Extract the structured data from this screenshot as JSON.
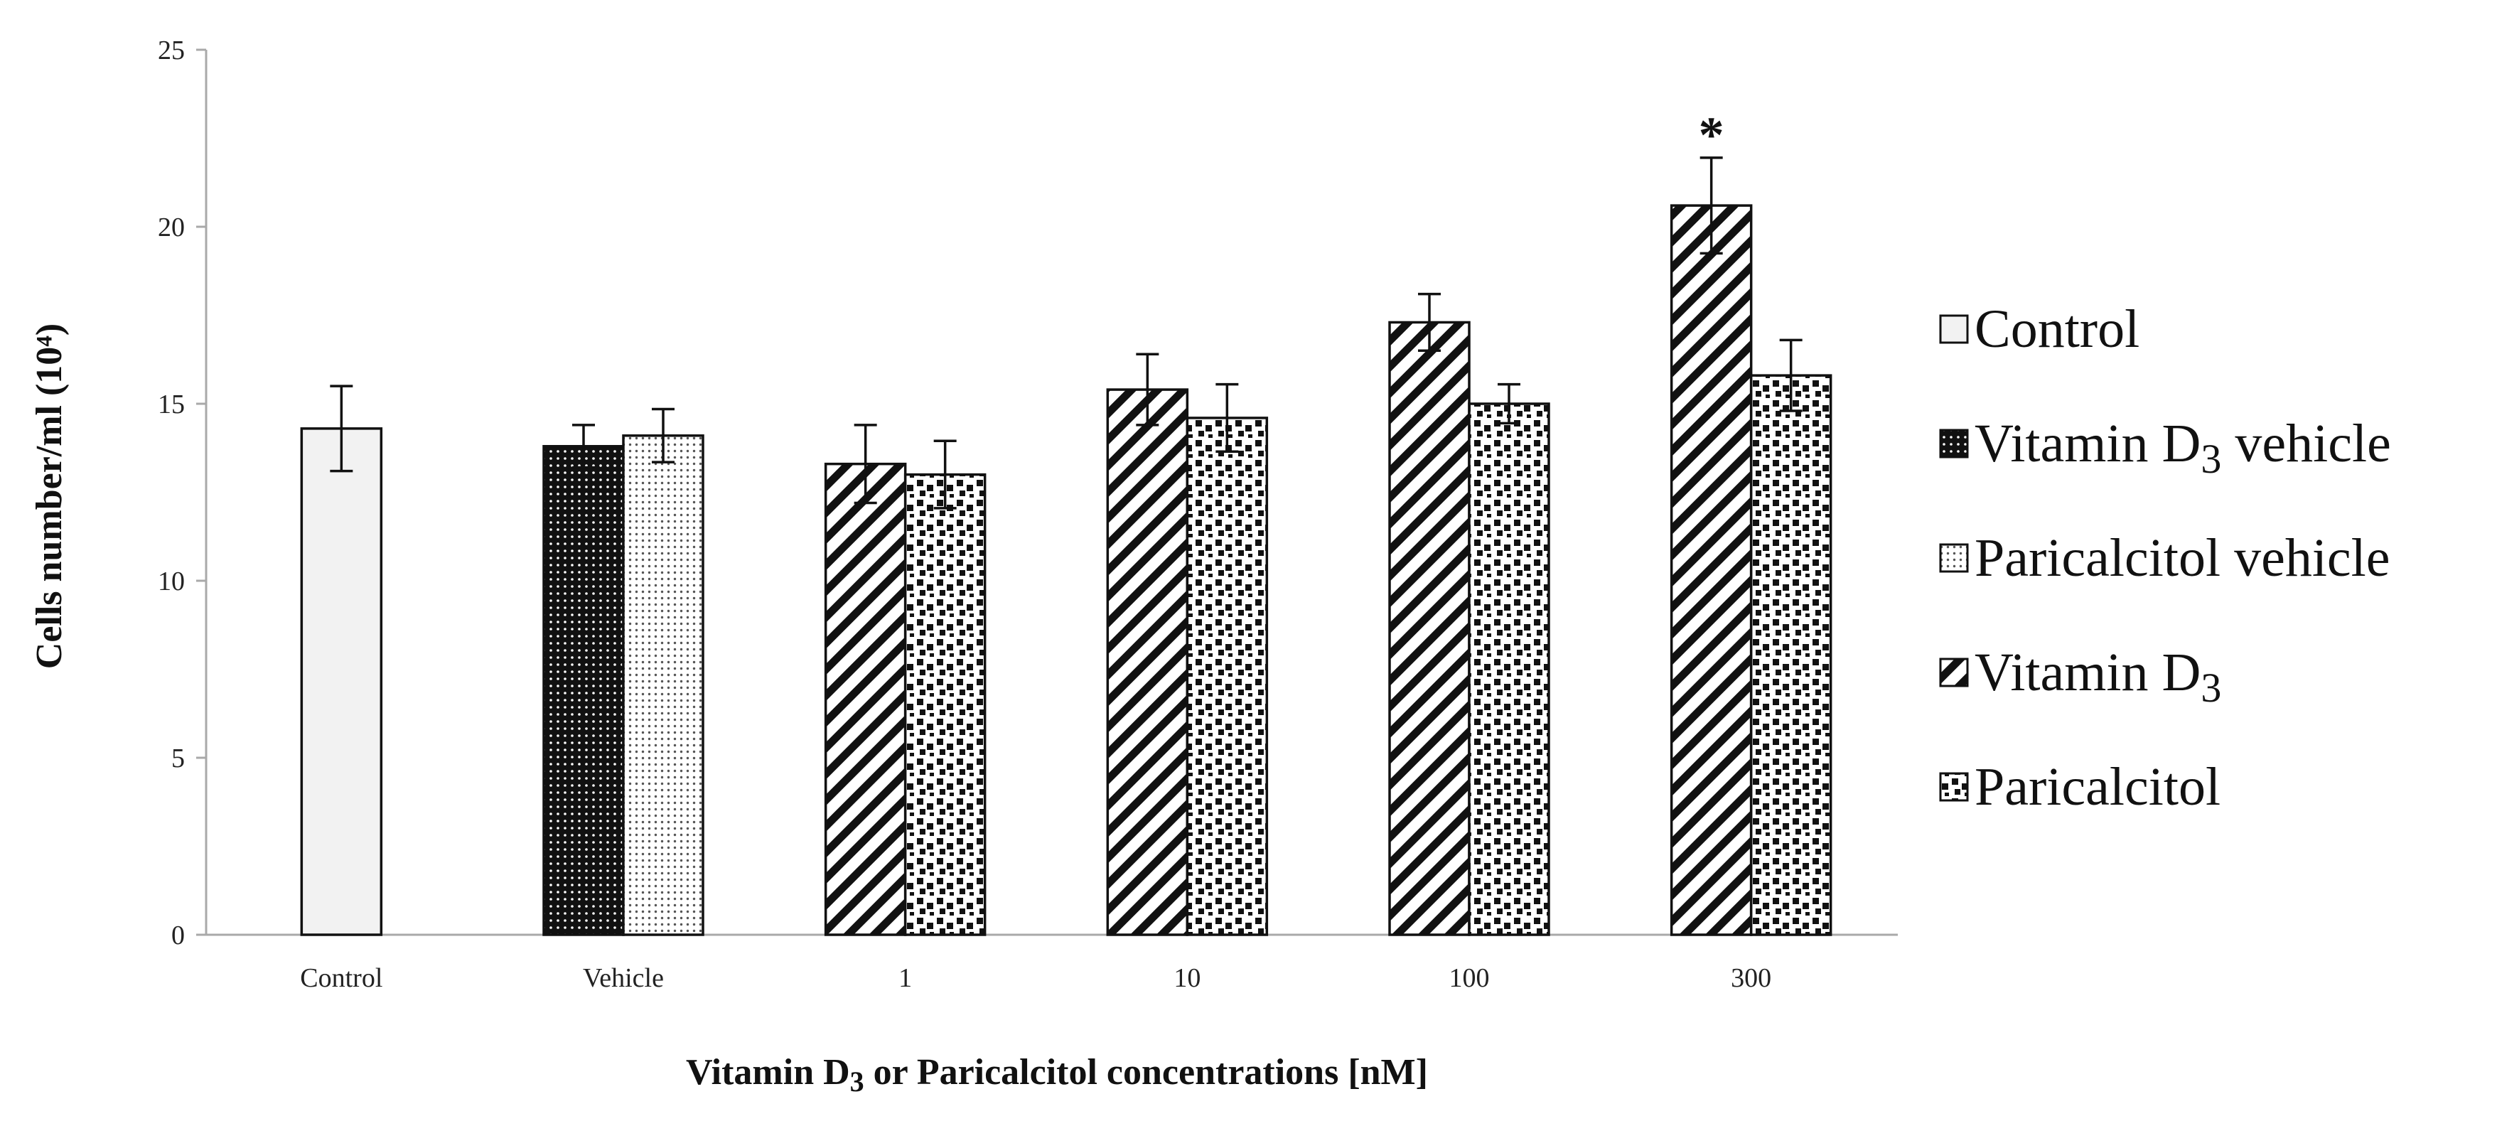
{
  "chart_data": {
    "type": "bar",
    "title": "",
    "xlabel": "Vitamin D3 or Paricalcitol concentrations [nM]",
    "xlabel_parts": {
      "prefix": "Vitamin D",
      "subscript": "3",
      "suffix": " or Paricalcitol concentrations [nM]"
    },
    "ylabel": "Cells number/ml (10⁴)",
    "ylim": [
      0,
      25
    ],
    "yticks": [
      0,
      5,
      10,
      15,
      20,
      25
    ],
    "grid": false,
    "legend_position": "right",
    "categories": [
      "Control",
      "Vehicle",
      "1",
      "10",
      "100",
      "300"
    ],
    "series": [
      {
        "name": "Control",
        "pattern": "plain",
        "values": [
          14.3,
          null,
          null,
          null,
          null,
          null
        ],
        "errors": [
          1.2,
          null,
          null,
          null,
          null,
          null
        ]
      },
      {
        "name": "Vitamin D3 vehicle",
        "pattern": "dense-dots",
        "values": [
          null,
          13.8,
          null,
          null,
          null,
          null
        ],
        "errors": [
          null,
          0.6,
          null,
          null,
          null,
          null
        ]
      },
      {
        "name": "Paricalcitol vehicle",
        "pattern": "light-dots",
        "values": [
          null,
          14.1,
          null,
          null,
          null,
          null
        ],
        "errors": [
          null,
          0.75,
          null,
          null,
          null,
          null
        ]
      },
      {
        "name": "Vitamin D3",
        "pattern": "diagonal",
        "values": [
          null,
          null,
          13.3,
          15.4,
          17.3,
          20.6
        ],
        "errors": [
          null,
          null,
          1.1,
          1.0,
          0.8,
          1.35
        ]
      },
      {
        "name": "Paricalcitol",
        "pattern": "squares",
        "values": [
          null,
          null,
          13.0,
          14.6,
          15.0,
          15.8
        ],
        "errors": [
          null,
          null,
          0.95,
          0.95,
          0.55,
          1.0
        ]
      }
    ],
    "legend": [
      {
        "series": 0,
        "prefix": "Control",
        "subscript": "",
        "suffix": ""
      },
      {
        "series": 1,
        "prefix": "Vitamin D",
        "subscript": "3",
        "suffix": " vehicle"
      },
      {
        "series": 2,
        "prefix": "Paricalcitol vehicle",
        "subscript": "",
        "suffix": ""
      },
      {
        "series": 3,
        "prefix": "Vitamin D",
        "subscript": "3",
        "suffix": ""
      },
      {
        "series": 4,
        "prefix": "Paricalcitol",
        "subscript": "",
        "suffix": ""
      }
    ],
    "annotations": [
      {
        "text": "*",
        "category": "300",
        "series": 3
      }
    ]
  },
  "colors": {
    "axis": "#a9a9a9",
    "bar_stroke": "#111111",
    "control_fill": "#f2f2f2",
    "pattern_ink": "#111111",
    "background": "#ffffff"
  }
}
